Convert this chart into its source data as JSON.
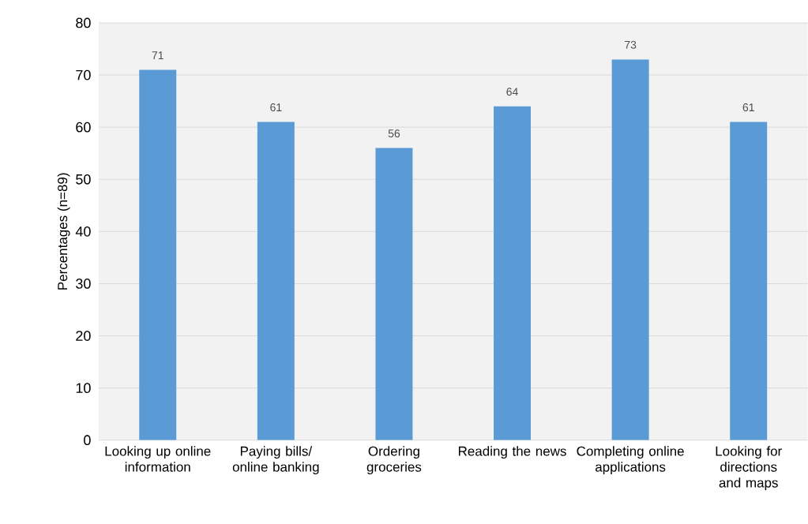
{
  "chart_data": {
    "type": "bar",
    "ylabel": "Percentages (n=89)",
    "categories": [
      "Looking up online information",
      "Paying bills/ online banking",
      "Ordering groceries",
      "Reading the news",
      "Completing online applications",
      "Looking for directions and maps"
    ],
    "values": [
      71,
      61,
      56,
      64,
      73,
      61
    ],
    "color": "#5b9bd5",
    "ylim": [
      0,
      80
    ],
    "yticks": [
      0,
      10,
      20,
      30,
      40,
      50,
      60,
      70,
      80
    ],
    "grid": "y",
    "data_labels": true
  }
}
